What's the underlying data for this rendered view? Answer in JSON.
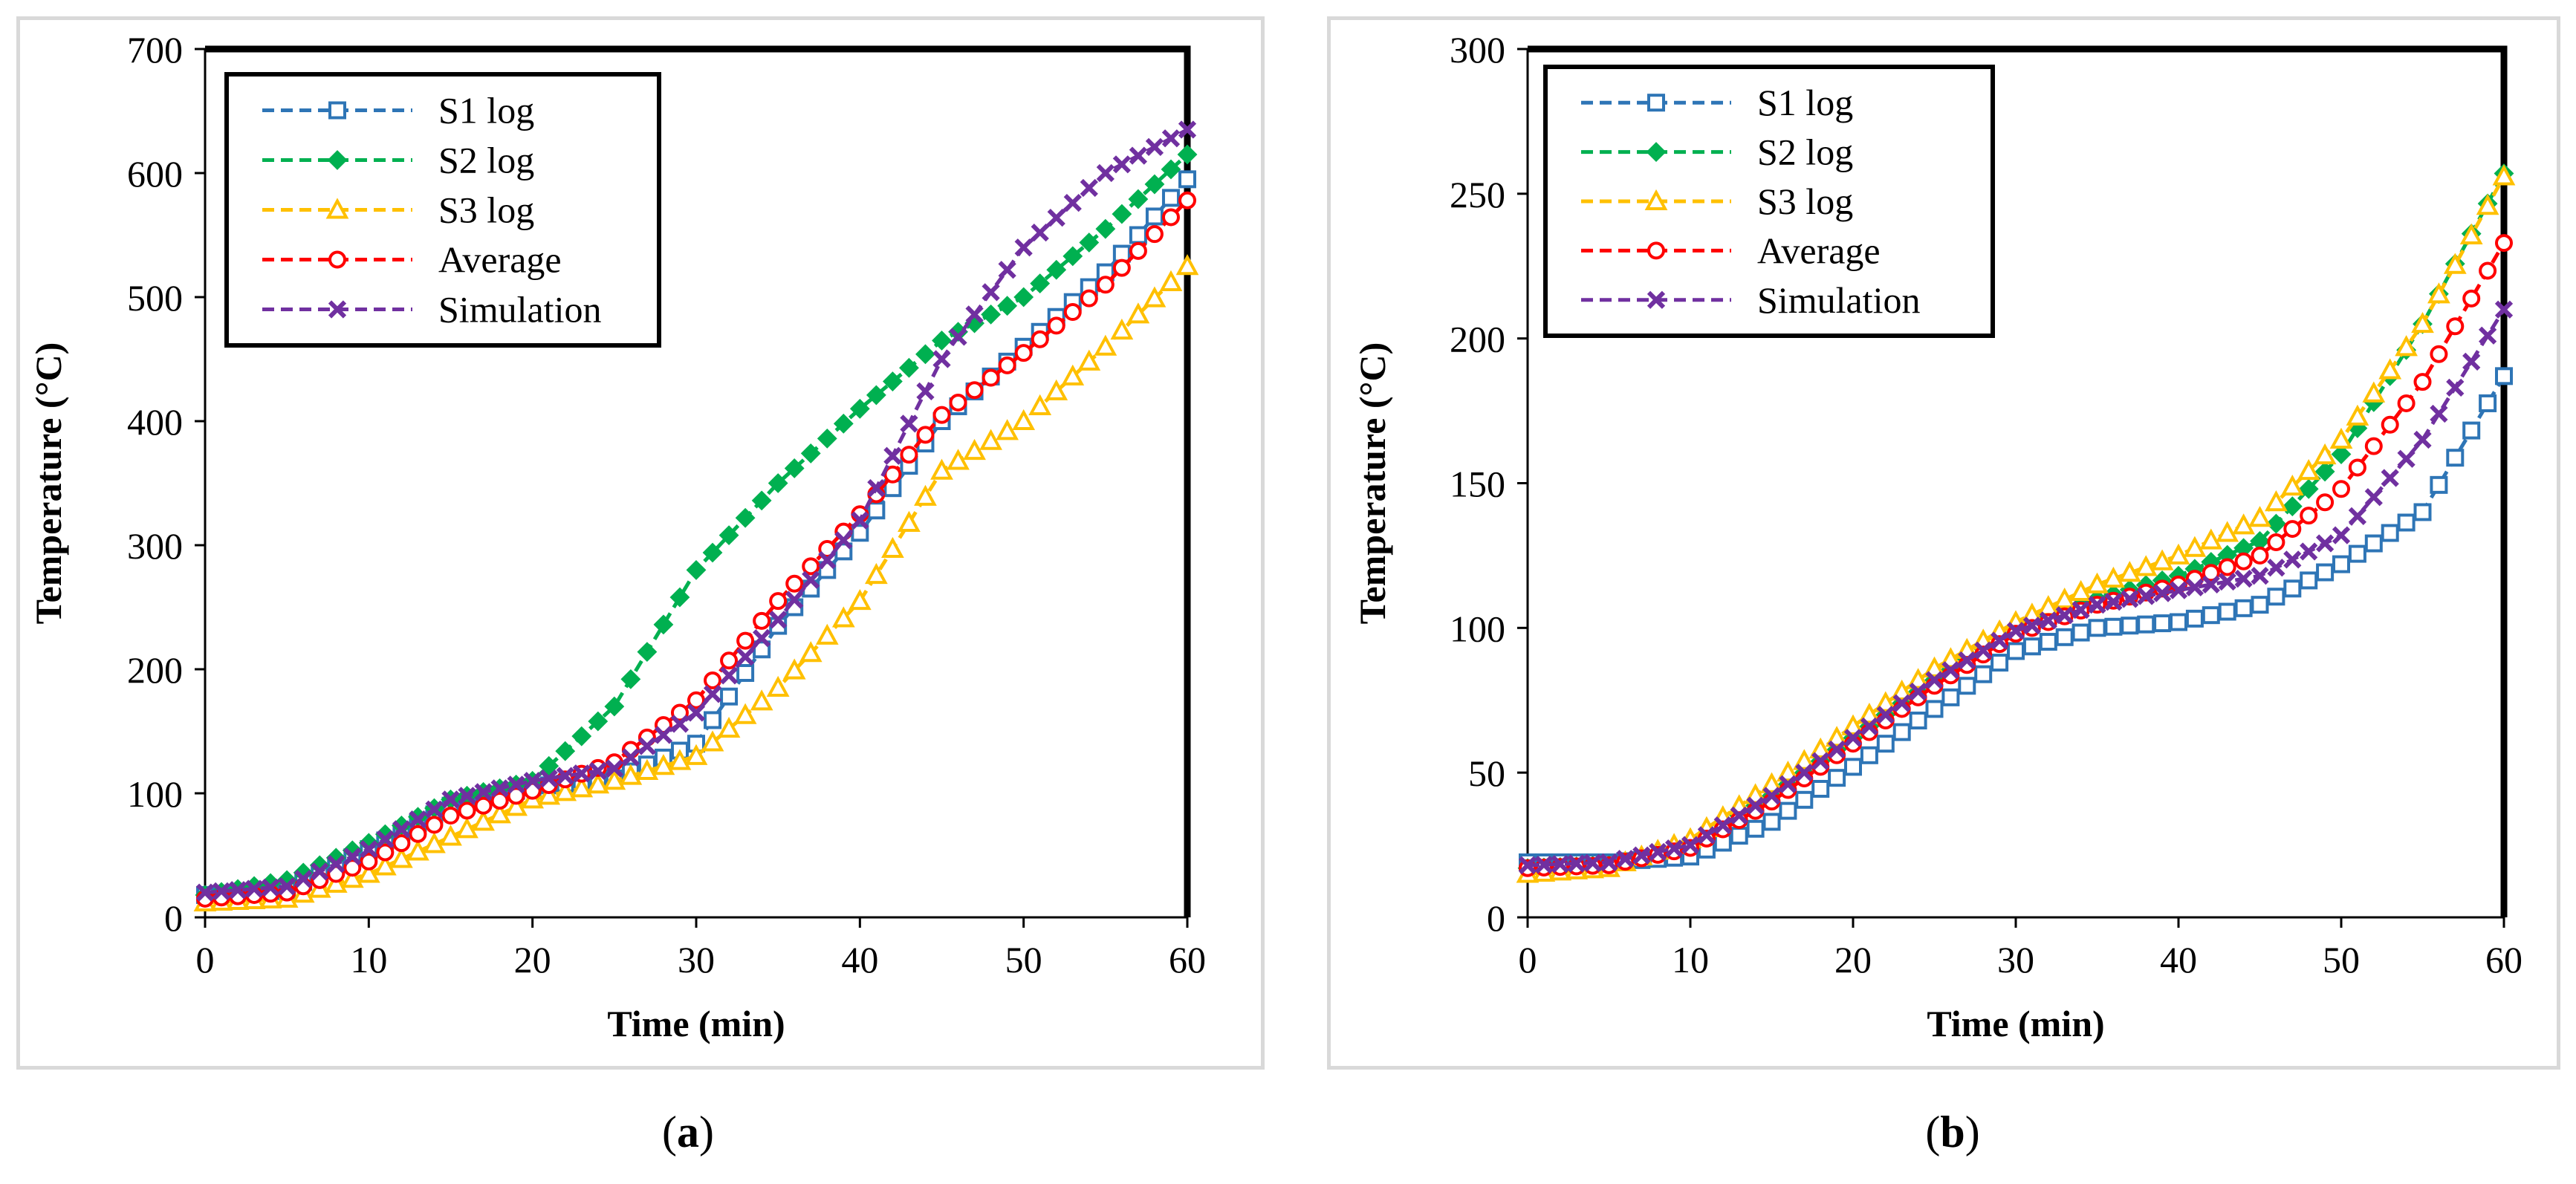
{
  "colors": {
    "s1": "#2e75b6",
    "s2": "#00b050",
    "s3": "#ffc000",
    "average": "#ff0000",
    "simulation": "#7030a0"
  },
  "chart_data": [
    {
      "type": "line",
      "panel_label": "a",
      "xlabel": "Time (min)",
      "ylabel": "Temperature (°C)",
      "xlim": [
        0,
        60
      ],
      "ylim": [
        0,
        700
      ],
      "xticks": [
        0,
        10,
        20,
        30,
        40,
        50,
        60
      ],
      "yticks": [
        0,
        100,
        200,
        300,
        400,
        500,
        600,
        700
      ],
      "grid": false,
      "legend_position": "top-left",
      "x": [
        0,
        5,
        10,
        15,
        20,
        25,
        30,
        35,
        40,
        45,
        50,
        55,
        60
      ],
      "series": [
        {
          "name": "S1 log",
          "key": "s1",
          "marker": "square",
          "values": [
            18,
            22,
            55,
            90,
            105,
            112,
            140,
            235,
            310,
            400,
            460,
            520,
            595
          ]
        },
        {
          "name": "S2 log",
          "key": "s2",
          "marker": "diamond",
          "values": [
            18,
            30,
            60,
            95,
            110,
            170,
            280,
            350,
            410,
            465,
            500,
            555,
            615
          ]
        },
        {
          "name": "S3 log",
          "key": "s3",
          "marker": "triangle",
          "values": [
            12,
            15,
            35,
            65,
            95,
            110,
            130,
            185,
            255,
            360,
            400,
            460,
            525
          ]
        },
        {
          "name": "Average",
          "key": "average",
          "marker": "circle",
          "values": [
            15,
            20,
            45,
            82,
            102,
            125,
            175,
            255,
            325,
            405,
            455,
            510,
            578
          ]
        },
        {
          "name": "Simulation",
          "key": "simulation",
          "marker": "x",
          "values": [
            20,
            25,
            55,
            95,
            110,
            120,
            165,
            240,
            320,
            450,
            540,
            600,
            635
          ]
        }
      ]
    },
    {
      "type": "line",
      "panel_label": "b",
      "xlabel": "Time (min)",
      "ylabel": "Temperature (°C)",
      "xlim": [
        0,
        60
      ],
      "ylim": [
        0,
        300
      ],
      "xticks": [
        0,
        10,
        20,
        30,
        40,
        50,
        60
      ],
      "yticks": [
        0,
        50,
        100,
        150,
        200,
        250,
        300
      ],
      "grid": false,
      "legend_position": "top-left",
      "x": [
        0,
        5,
        10,
        15,
        20,
        25,
        30,
        35,
        40,
        45,
        50,
        55,
        60
      ],
      "series": [
        {
          "name": "S1 log",
          "key": "s1",
          "marker": "square",
          "values": [
            19,
            19,
            21,
            33,
            52,
            72,
            92,
            100,
            102,
            108,
            122,
            140,
            187
          ]
        },
        {
          "name": "S2 log",
          "key": "s2",
          "marker": "diamond",
          "values": [
            17,
            18,
            25,
            42,
            62,
            82,
            100,
            110,
            118,
            130,
            160,
            205,
            257
          ]
        },
        {
          "name": "S3 log",
          "key": "s3",
          "marker": "triangle",
          "values": [
            15,
            17,
            27,
            46,
            66,
            86,
            102,
            115,
            125,
            138,
            165,
            205,
            256
          ]
        },
        {
          "name": "Average",
          "key": "average",
          "marker": "circle",
          "values": [
            17,
            18,
            24,
            40,
            60,
            80,
            98,
            108,
            115,
            125,
            148,
            185,
            233
          ]
        },
        {
          "name": "Simulation",
          "key": "simulation",
          "marker": "x",
          "values": [
            18,
            19,
            25,
            42,
            62,
            82,
            99,
            108,
            113,
            118,
            132,
            165,
            210
          ]
        }
      ]
    }
  ]
}
